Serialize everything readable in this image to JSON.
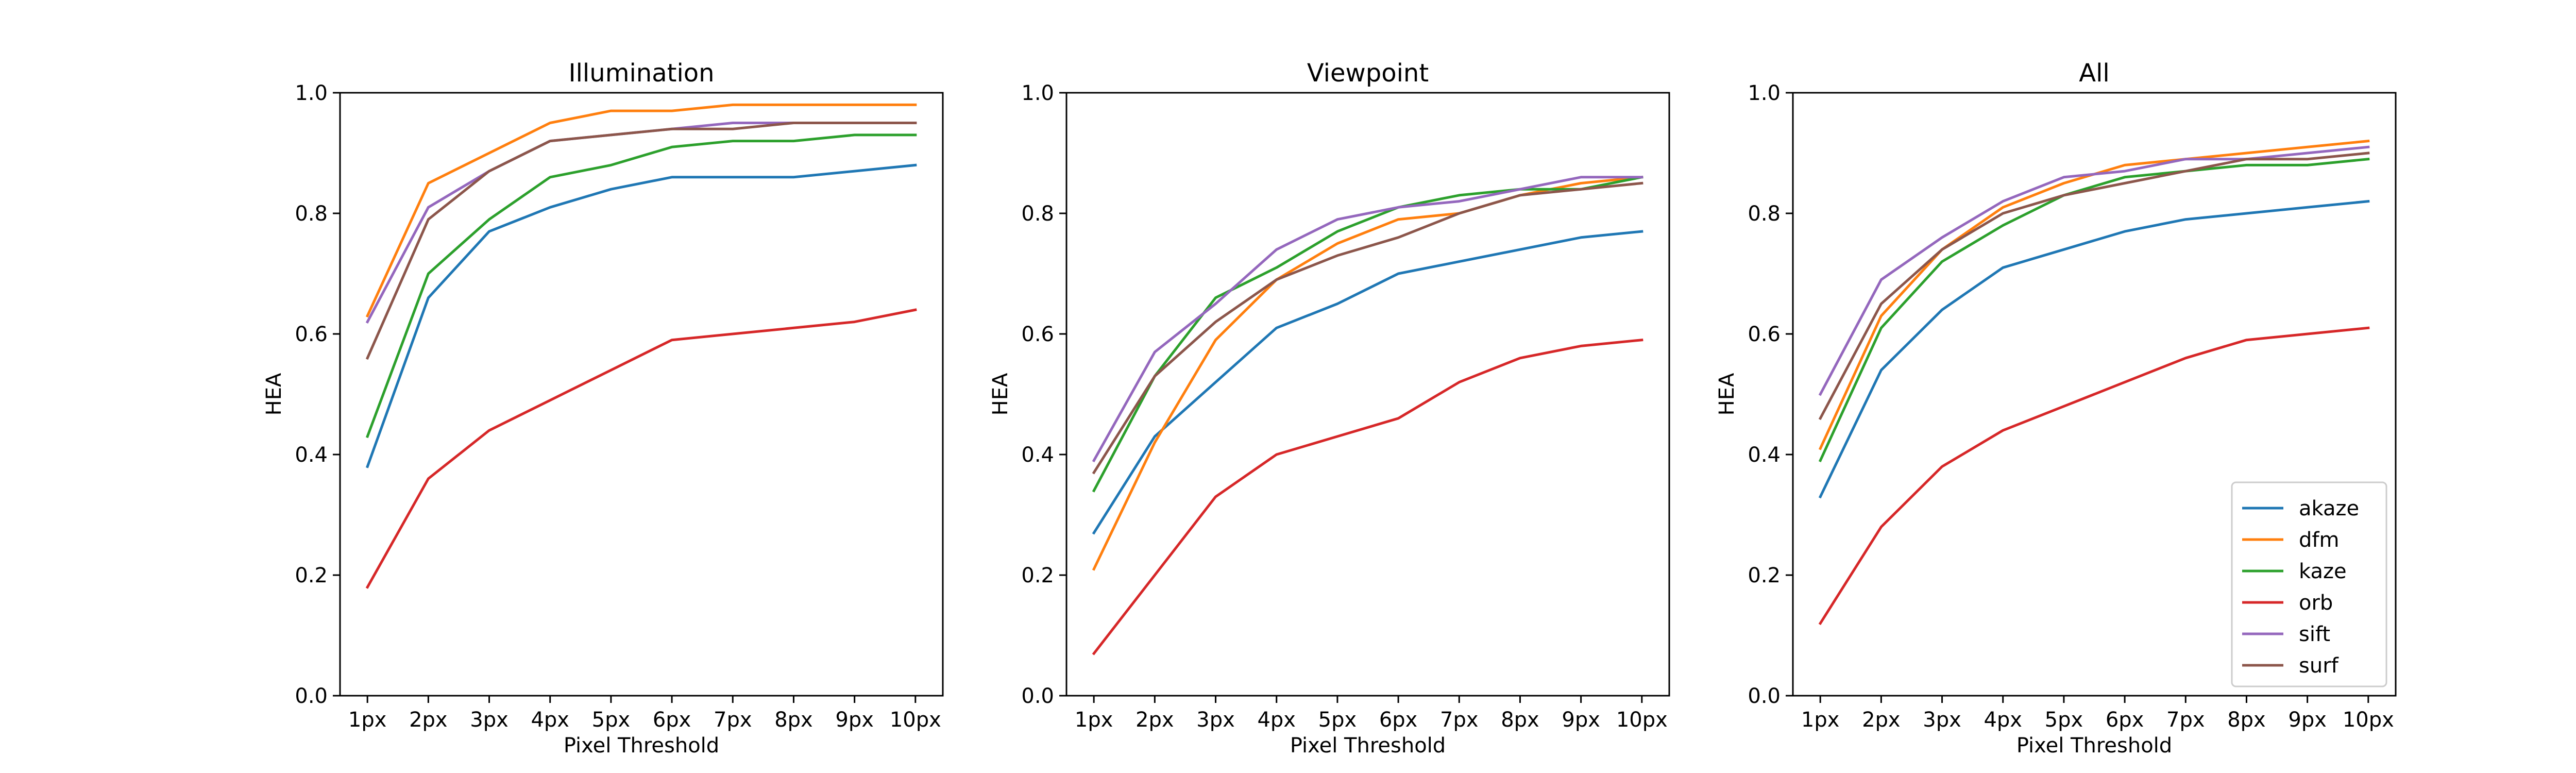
{
  "chart_data": [
    {
      "type": "line",
      "title": "Illumination",
      "xlabel": "Pixel Threshold",
      "ylabel": "HEA",
      "categories": [
        "1px",
        "2px",
        "3px",
        "4px",
        "5px",
        "6px",
        "7px",
        "8px",
        "9px",
        "10px"
      ],
      "ylim": [
        0,
        1
      ],
      "yticks": [
        "0.0",
        "0.2",
        "0.4",
        "0.6",
        "0.8",
        "1.0"
      ],
      "grid": false,
      "series": [
        {
          "name": "akaze",
          "color": "#1f77b4",
          "values": [
            0.38,
            0.66,
            0.77,
            0.81,
            0.84,
            0.86,
            0.86,
            0.86,
            0.87,
            0.88
          ]
        },
        {
          "name": "dfm",
          "color": "#ff7f0e",
          "values": [
            0.63,
            0.85,
            0.9,
            0.95,
            0.97,
            0.97,
            0.98,
            0.98,
            0.98,
            0.98
          ]
        },
        {
          "name": "kaze",
          "color": "#2ca02c",
          "values": [
            0.43,
            0.7,
            0.79,
            0.86,
            0.88,
            0.91,
            0.92,
            0.92,
            0.93,
            0.93
          ]
        },
        {
          "name": "orb",
          "color": "#d62728",
          "values": [
            0.18,
            0.36,
            0.44,
            0.49,
            0.54,
            0.59,
            0.6,
            0.61,
            0.62,
            0.64
          ]
        },
        {
          "name": "sift",
          "color": "#9467bd",
          "values": [
            0.62,
            0.81,
            0.87,
            0.92,
            0.93,
            0.94,
            0.95,
            0.95,
            0.95,
            0.95
          ]
        },
        {
          "name": "surf",
          "color": "#8c564b",
          "values": [
            0.56,
            0.79,
            0.87,
            0.92,
            0.93,
            0.94,
            0.94,
            0.95,
            0.95,
            0.95
          ]
        }
      ]
    },
    {
      "type": "line",
      "title": "Viewpoint",
      "xlabel": "Pixel Threshold",
      "ylabel": "HEA",
      "categories": [
        "1px",
        "2px",
        "3px",
        "4px",
        "5px",
        "6px",
        "7px",
        "8px",
        "9px",
        "10px"
      ],
      "ylim": [
        0,
        1
      ],
      "yticks": [
        "0.0",
        "0.2",
        "0.4",
        "0.6",
        "0.8",
        "1.0"
      ],
      "grid": false,
      "series": [
        {
          "name": "akaze",
          "color": "#1f77b4",
          "values": [
            0.27,
            0.43,
            0.52,
            0.61,
            0.65,
            0.7,
            0.72,
            0.74,
            0.76,
            0.77
          ]
        },
        {
          "name": "dfm",
          "color": "#ff7f0e",
          "values": [
            0.21,
            0.42,
            0.59,
            0.69,
            0.75,
            0.79,
            0.8,
            0.83,
            0.85,
            0.86
          ]
        },
        {
          "name": "kaze",
          "color": "#2ca02c",
          "values": [
            0.34,
            0.53,
            0.66,
            0.71,
            0.77,
            0.81,
            0.83,
            0.84,
            0.84,
            0.86
          ]
        },
        {
          "name": "orb",
          "color": "#d62728",
          "values": [
            0.07,
            0.2,
            0.33,
            0.4,
            0.43,
            0.46,
            0.52,
            0.56,
            0.58,
            0.59
          ]
        },
        {
          "name": "sift",
          "color": "#9467bd",
          "values": [
            0.39,
            0.57,
            0.65,
            0.74,
            0.79,
            0.81,
            0.82,
            0.84,
            0.86,
            0.86
          ]
        },
        {
          "name": "surf",
          "color": "#8c564b",
          "values": [
            0.37,
            0.53,
            0.62,
            0.69,
            0.73,
            0.76,
            0.8,
            0.83,
            0.84,
            0.85
          ]
        }
      ]
    },
    {
      "type": "line",
      "title": "All",
      "xlabel": "Pixel Threshold",
      "ylabel": "HEA",
      "categories": [
        "1px",
        "2px",
        "3px",
        "4px",
        "5px",
        "6px",
        "7px",
        "8px",
        "9px",
        "10px"
      ],
      "ylim": [
        0,
        1
      ],
      "yticks": [
        "0.0",
        "0.2",
        "0.4",
        "0.6",
        "0.8",
        "1.0"
      ],
      "grid": false,
      "legend": "lower-right",
      "series": [
        {
          "name": "akaze",
          "color": "#1f77b4",
          "values": [
            0.33,
            0.54,
            0.64,
            0.71,
            0.74,
            0.77,
            0.79,
            0.8,
            0.81,
            0.82
          ]
        },
        {
          "name": "dfm",
          "color": "#ff7f0e",
          "values": [
            0.41,
            0.63,
            0.74,
            0.81,
            0.85,
            0.88,
            0.89,
            0.9,
            0.91,
            0.92
          ]
        },
        {
          "name": "kaze",
          "color": "#2ca02c",
          "values": [
            0.39,
            0.61,
            0.72,
            0.78,
            0.83,
            0.86,
            0.87,
            0.88,
            0.88,
            0.89
          ]
        },
        {
          "name": "orb",
          "color": "#d62728",
          "values": [
            0.12,
            0.28,
            0.38,
            0.44,
            0.48,
            0.52,
            0.56,
            0.59,
            0.6,
            0.61
          ]
        },
        {
          "name": "sift",
          "color": "#9467bd",
          "values": [
            0.5,
            0.69,
            0.76,
            0.82,
            0.86,
            0.87,
            0.89,
            0.89,
            0.9,
            0.91
          ]
        },
        {
          "name": "surf",
          "color": "#8c564b",
          "values": [
            0.46,
            0.65,
            0.74,
            0.8,
            0.83,
            0.85,
            0.87,
            0.89,
            0.89,
            0.9
          ]
        }
      ]
    }
  ]
}
